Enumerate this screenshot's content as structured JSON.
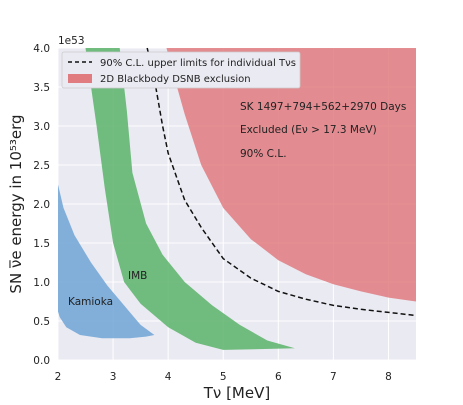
{
  "chart_data": {
    "type": "area",
    "xlabel": "Tν [MeV]",
    "ylabel": "SN ν̅e energy in 10⁵³erg",
    "y_offset_label": "1e53",
    "xlim": [
      2,
      8.5
    ],
    "ylim": [
      0,
      4.0
    ],
    "xticks": [
      2,
      3,
      4,
      5,
      6,
      7,
      8
    ],
    "yticks": [
      0.0,
      0.5,
      1.0,
      1.5,
      2.0,
      2.5,
      3.0,
      3.5,
      4.0
    ],
    "grid": true,
    "legend_position": "top-left",
    "legend": [
      {
        "label": "90% C.L. upper limits for individual Tνs",
        "style": "dashed-line",
        "color": "#111111"
      },
      {
        "label": "2D Blackbody DSNB exclusion",
        "style": "patch",
        "color": "#e07b80"
      }
    ],
    "annotations": [
      "SK 1497+794+562+2970 Days",
      "Excluded (Eν > 17.3 MeV)",
      "90% C.L."
    ],
    "regions": [
      {
        "name": "Kamioka",
        "color": "#6fa5d6",
        "polygon": [
          [
            2.0,
            2.25
          ],
          [
            2.1,
            1.95
          ],
          [
            2.3,
            1.6
          ],
          [
            2.6,
            1.25
          ],
          [
            2.9,
            0.95
          ],
          [
            3.2,
            0.7
          ],
          [
            3.5,
            0.45
          ],
          [
            3.75,
            0.32
          ],
          [
            3.6,
            0.3
          ],
          [
            3.3,
            0.28
          ],
          [
            2.8,
            0.28
          ],
          [
            2.4,
            0.32
          ],
          [
            2.15,
            0.42
          ],
          [
            2.03,
            0.55
          ],
          [
            2.0,
            0.62
          ]
        ]
      },
      {
        "name": "IMB",
        "color": "#5bb36a",
        "polygon": [
          [
            2.5,
            4.0
          ],
          [
            3.12,
            4.0
          ],
          [
            3.25,
            3.2
          ],
          [
            3.35,
            2.4
          ],
          [
            3.6,
            1.75
          ],
          [
            3.9,
            1.35
          ],
          [
            4.3,
            1.0
          ],
          [
            4.8,
            0.7
          ],
          [
            5.3,
            0.45
          ],
          [
            5.8,
            0.25
          ],
          [
            6.3,
            0.15
          ],
          [
            5.0,
            0.13
          ],
          [
            4.5,
            0.22
          ],
          [
            4.0,
            0.42
          ],
          [
            3.5,
            0.72
          ],
          [
            3.2,
            1.0
          ],
          [
            3.0,
            1.5
          ],
          [
            2.85,
            2.2
          ],
          [
            2.7,
            3.0
          ]
        ]
      },
      {
        "name": "2D Blackbody DSNB exclusion",
        "color": "#e07b80",
        "polygon": [
          [
            3.97,
            4.0
          ],
          [
            8.5,
            4.0
          ],
          [
            8.5,
            0.75
          ],
          [
            8.0,
            0.8
          ],
          [
            7.5,
            0.88
          ],
          [
            7.0,
            0.97
          ],
          [
            6.5,
            1.1
          ],
          [
            6.0,
            1.28
          ],
          [
            5.5,
            1.55
          ],
          [
            5.0,
            1.95
          ],
          [
            4.6,
            2.5
          ],
          [
            4.3,
            3.15
          ],
          [
            4.1,
            3.65
          ]
        ]
      }
    ],
    "series": [
      {
        "name": "90% C.L. upper limits for individual Tνs",
        "style": "dashed",
        "x": [
          3.62,
          3.75,
          3.9,
          4.0,
          4.3,
          4.6,
          5.0,
          5.5,
          6.0,
          6.5,
          7.0,
          7.5,
          8.0,
          8.5
        ],
        "y": [
          4.0,
          3.6,
          3.0,
          2.65,
          2.05,
          1.7,
          1.3,
          1.05,
          0.88,
          0.78,
          0.7,
          0.65,
          0.61,
          0.57
        ]
      }
    ]
  }
}
